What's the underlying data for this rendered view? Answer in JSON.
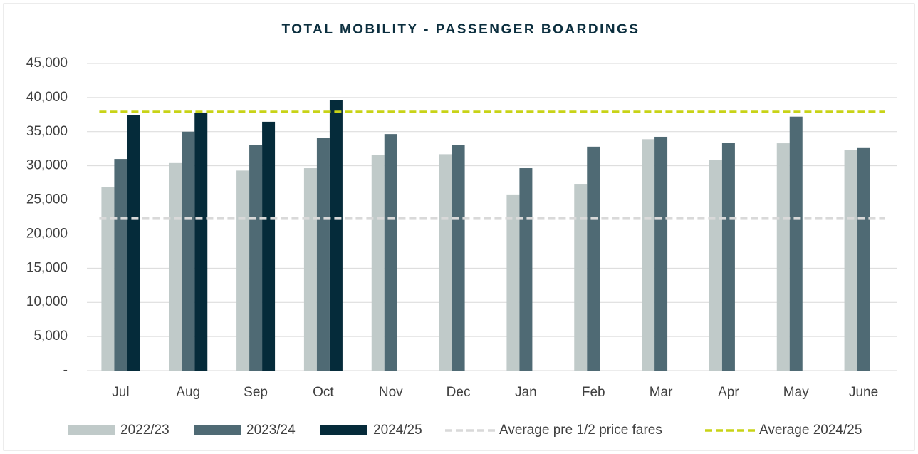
{
  "chart_data": {
    "type": "bar",
    "title": "TOTAL MOBILITY - PASSENGER BOARDINGS",
    "categories": [
      "Jul",
      "Aug",
      "Sep",
      "Oct",
      "Nov",
      "Dec",
      "Jan",
      "Feb",
      "Mar",
      "Apr",
      "May",
      "June"
    ],
    "series": [
      {
        "name": "2022/23",
        "color": "#c0cac9",
        "values": [
          26900,
          30400,
          29300,
          29650,
          31600,
          31700,
          25800,
          27350,
          33900,
          30800,
          33300,
          32350
        ]
      },
      {
        "name": "2023/24",
        "color": "#4f6a74",
        "values": [
          31000,
          35000,
          33000,
          34100,
          34650,
          33000,
          29650,
          32800,
          34250,
          33400,
          37200,
          32700
        ]
      },
      {
        "name": "2024/25",
        "color": "#052b3a",
        "values": [
          37400,
          37800,
          36450,
          39650,
          null,
          null,
          null,
          null,
          null,
          null,
          null,
          null
        ]
      }
    ],
    "reference_lines": [
      {
        "name": "Average pre 1/2 price fares",
        "color": "#d9d9d9",
        "value": 22350
      },
      {
        "name": "Average 2024/25",
        "color": "#c8d317",
        "value": 37900
      }
    ],
    "ylim": [
      0,
      45000
    ],
    "yticks": [
      {
        "value": 0,
        "label": "-"
      },
      {
        "value": 5000,
        "label": "5,000"
      },
      {
        "value": 10000,
        "label": "10,000"
      },
      {
        "value": 15000,
        "label": "15,000"
      },
      {
        "value": 20000,
        "label": "20,000"
      },
      {
        "value": 25000,
        "label": "25,000"
      },
      {
        "value": 30000,
        "label": "30,000"
      },
      {
        "value": 35000,
        "label": "35,000"
      },
      {
        "value": 40000,
        "label": "40,000"
      },
      {
        "value": 45000,
        "label": "45,000"
      }
    ],
    "grid": true,
    "legend": "bottom"
  }
}
